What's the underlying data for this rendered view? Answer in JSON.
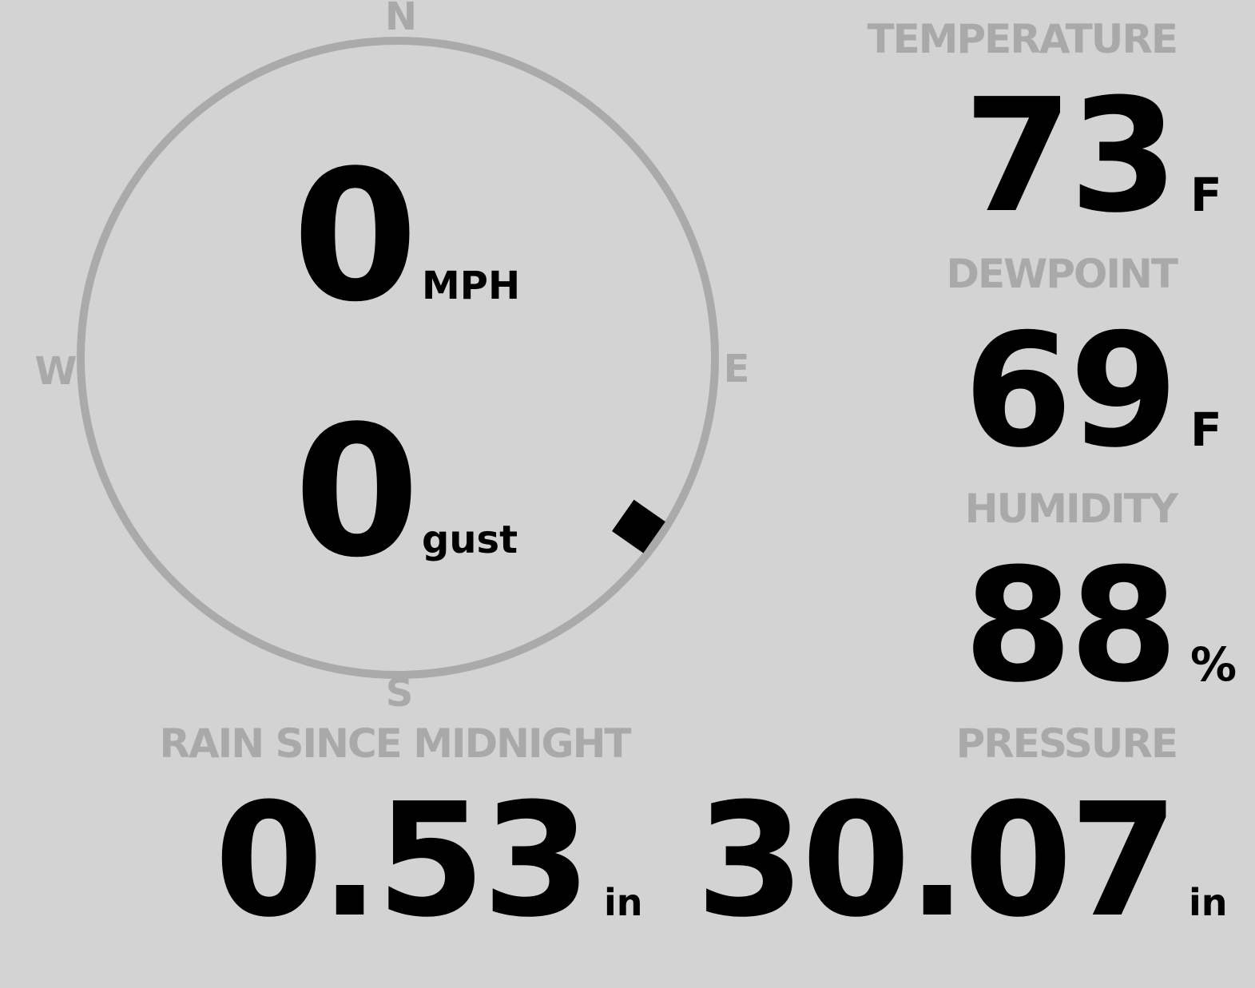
{
  "compass": {
    "north": "N",
    "east": "E",
    "south": "S",
    "west": "W",
    "wind_direction_deg": 125
  },
  "wind": {
    "speed": "0",
    "speed_unit": "MPH",
    "gust": "0",
    "gust_unit": "gust"
  },
  "temperature": {
    "label": "TEMPERATURE",
    "value": "73",
    "unit": "F"
  },
  "dewpoint": {
    "label": "DEWPOINT",
    "value": "69",
    "unit": "F"
  },
  "humidity": {
    "label": "HUMIDITY",
    "value": "88",
    "unit": "%"
  },
  "pressure": {
    "label": "PRESSURE",
    "value": "30.07",
    "unit": "in"
  },
  "rain": {
    "label": "RAIN SINCE MIDNIGHT",
    "value": "0.53",
    "unit": "in"
  },
  "colors": {
    "background": "#d3d3d3",
    "label": "#a9a9a9",
    "value": "#000000",
    "dial": "#aaaaaa"
  }
}
